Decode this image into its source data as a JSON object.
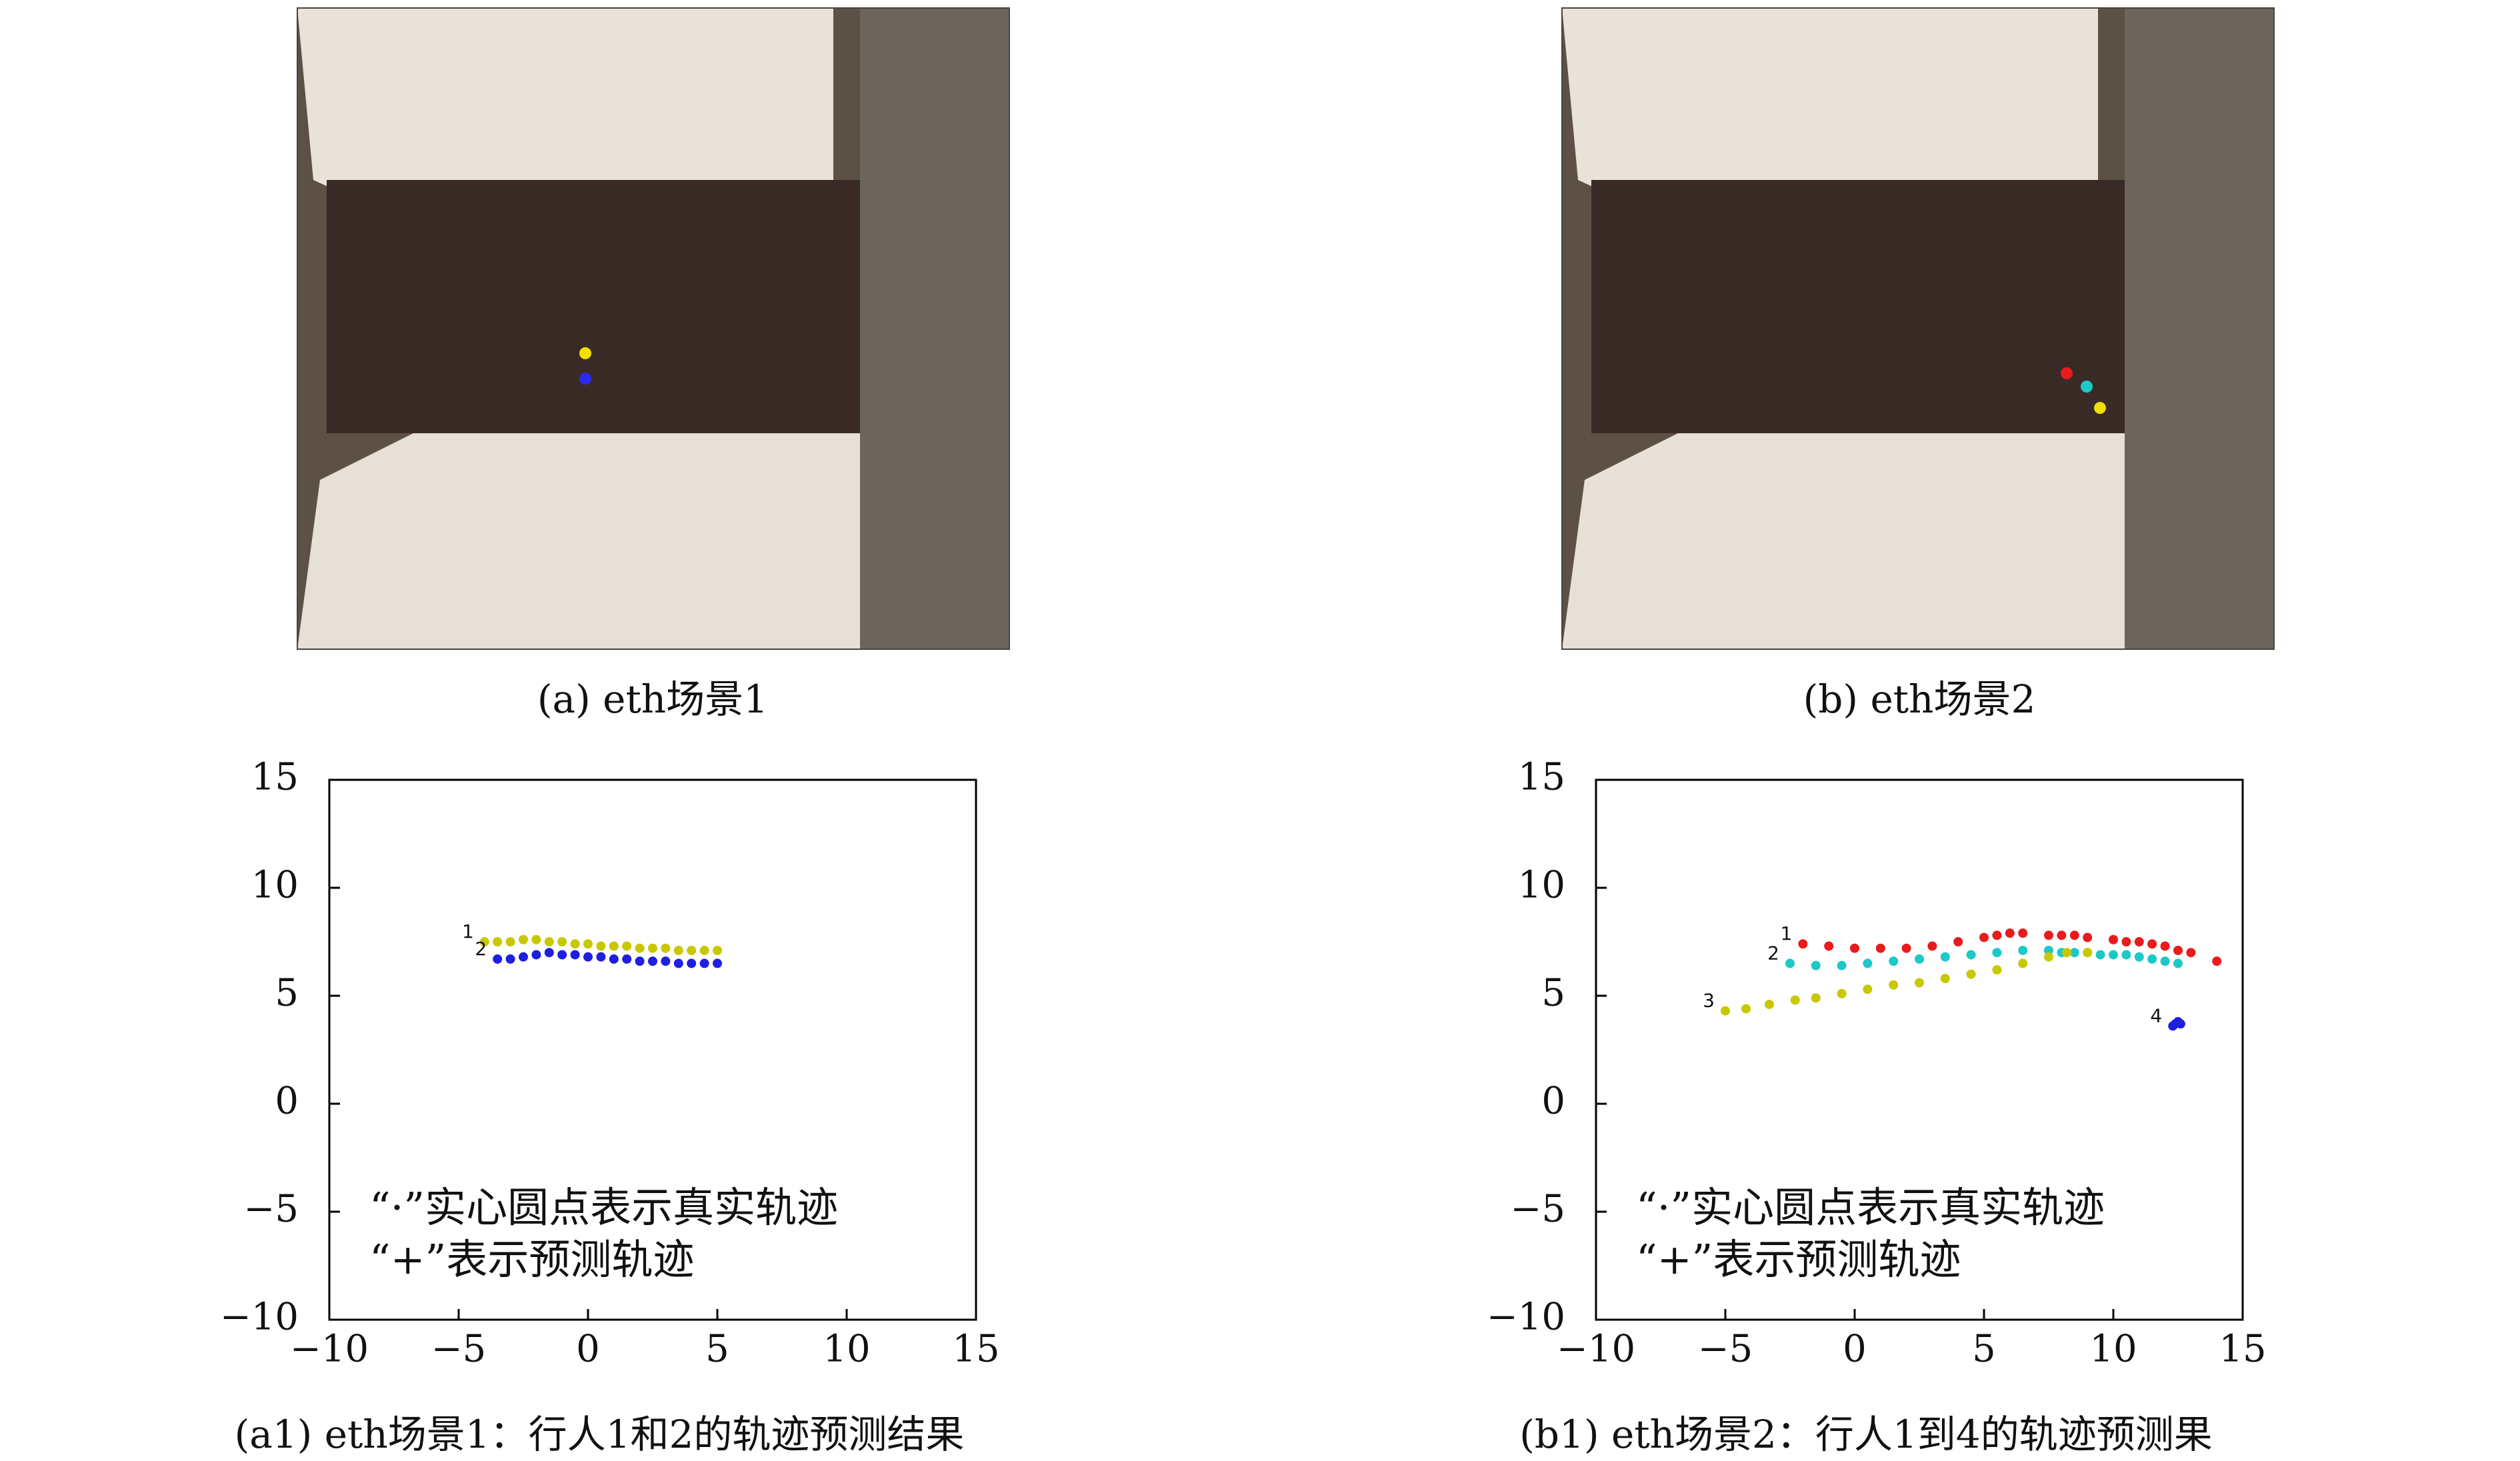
{
  "figures": [
    {
      "caption": "(a) eth场景1"
    },
    {
      "caption": "(b) eth场景2"
    }
  ],
  "chart_data": [
    {
      "type": "scatter",
      "caption": "(a1) eth场景1：行人1和2的轨迹预测结果",
      "annotations": [
        "“·”实心圆点表示真实轨迹",
        "“+”表示预测轨迹"
      ],
      "xlim": [
        -10,
        15
      ],
      "ylim": [
        -10,
        15
      ],
      "xticks": [
        {
          "value": -10,
          "label": "−10"
        },
        {
          "value": -5,
          "label": "−5"
        },
        0,
        5,
        10,
        15
      ],
      "yticks": [
        {
          "value": -10,
          "label": "−10"
        },
        {
          "value": -5,
          "label": "−5"
        },
        0,
        5,
        10,
        15
      ],
      "series": [
        {
          "name": "1",
          "color": "#c8c800",
          "x": [
            -4,
            -3.5,
            -3,
            -2.5,
            -2,
            -1.5,
            -1,
            -0.5,
            0,
            0.5,
            1,
            1.5,
            2,
            2.5,
            3,
            3.5,
            4,
            4.5,
            5
          ],
          "values": [
            7.5,
            7.5,
            7.5,
            7.6,
            7.6,
            7.5,
            7.5,
            7.4,
            7.4,
            7.3,
            7.3,
            7.3,
            7.2,
            7.2,
            7.2,
            7.1,
            7.1,
            7.1,
            7.1
          ]
        },
        {
          "name": "2",
          "color": "#1f1fe0",
          "x": [
            -3.5,
            -3,
            -2.5,
            -2,
            -1.5,
            -1,
            -0.5,
            0,
            0.5,
            1,
            1.5,
            2,
            2.5,
            3,
            3.5,
            4,
            4.5,
            5
          ],
          "values": [
            6.7,
            6.7,
            6.8,
            6.9,
            7.0,
            6.9,
            6.9,
            6.8,
            6.8,
            6.7,
            6.7,
            6.6,
            6.6,
            6.6,
            6.5,
            6.5,
            6.5,
            6.5
          ]
        }
      ]
    },
    {
      "type": "scatter",
      "caption": "(b1) eth场景2：行人1到4的轨迹预测果",
      "annotations": [
        "“·”实心圆点表示真实轨迹",
        "“+”表示预测轨迹"
      ],
      "xlim": [
        -10,
        15
      ],
      "ylim": [
        -10,
        15
      ],
      "xticks": [
        {
          "value": -10,
          "label": "−10"
        },
        {
          "value": -5,
          "label": "−5"
        },
        0,
        5,
        10,
        15
      ],
      "yticks": [
        {
          "value": -10,
          "label": "−10"
        },
        {
          "value": -5,
          "label": "−5"
        },
        0,
        5,
        10,
        15
      ],
      "series": [
        {
          "name": "1",
          "color": "#e81c1c",
          "x": [
            -2,
            -1,
            0,
            1,
            2,
            3,
            4,
            5,
            5.5,
            6,
            6.5,
            7.5,
            8,
            8.5,
            9,
            10,
            10.5,
            11,
            11.5,
            12,
            12.5,
            13,
            14
          ],
          "values": [
            7.4,
            7.3,
            7.2,
            7.2,
            7.2,
            7.3,
            7.5,
            7.7,
            7.8,
            7.9,
            7.9,
            7.8,
            7.8,
            7.8,
            7.7,
            7.6,
            7.5,
            7.5,
            7.4,
            7.3,
            7.1,
            7.0,
            6.6
          ]
        },
        {
          "name": "2",
          "color": "#1cc8c8",
          "x": [
            -2.5,
            -1.5,
            -0.5,
            0.5,
            1.5,
            2.5,
            3.5,
            4.5,
            5.5,
            6.5,
            7.5,
            8,
            8.5,
            9,
            9.5,
            10,
            10.5,
            11,
            11.5,
            12,
            12.5
          ],
          "values": [
            6.5,
            6.4,
            6.4,
            6.5,
            6.6,
            6.7,
            6.8,
            6.9,
            7.0,
            7.1,
            7.1,
            7.0,
            7.0,
            7.0,
            6.9,
            6.9,
            6.9,
            6.8,
            6.7,
            6.6,
            6.5
          ]
        },
        {
          "name": "3",
          "color": "#c8c800",
          "x": [
            -5,
            -4.2,
            -3.3,
            -2.3,
            -1.5,
            -0.5,
            0.5,
            1.5,
            2.5,
            3.5,
            4.5,
            5.5,
            6.5,
            7.5,
            8.2,
            9
          ],
          "values": [
            4.3,
            4.4,
            4.6,
            4.8,
            4.9,
            5.1,
            5.3,
            5.5,
            5.6,
            5.8,
            6.0,
            6.2,
            6.5,
            6.8,
            7.0,
            7.0
          ]
        },
        {
          "name": "4",
          "color": "#1f1fe0",
          "x": [
            12.3,
            12.4,
            12.5,
            12.6
          ],
          "values": [
            3.6,
            3.7,
            3.8,
            3.7
          ]
        }
      ]
    }
  ]
}
